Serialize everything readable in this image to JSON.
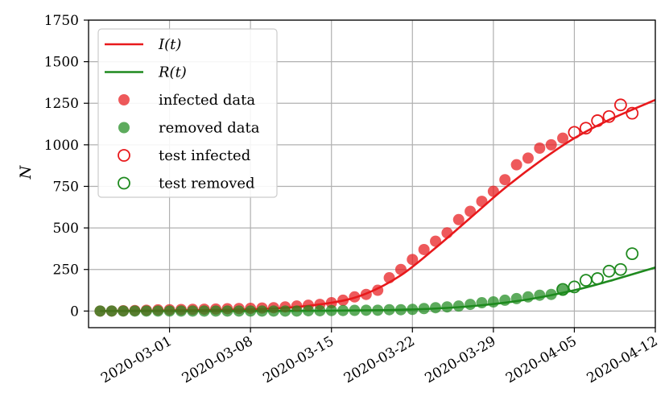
{
  "chart_data": {
    "type": "scatter",
    "title": "",
    "xlabel": "",
    "ylabel": "N",
    "grid": true,
    "legend_position": "top-left",
    "x_type": "date",
    "xlim": [
      "2020-02-23",
      "2020-04-12"
    ],
    "ylim": [
      -100,
      1750
    ],
    "xticks": [
      "2020-03-01",
      "2020-03-08",
      "2020-03-15",
      "2020-03-22",
      "2020-03-29",
      "2020-04-05",
      "2020-04-12"
    ],
    "yticks": [
      "0",
      "250",
      "500",
      "750",
      "1000",
      "1250",
      "1500",
      "1750"
    ],
    "colors": {
      "infected": "#e8191c",
      "removed": "#1f8a1f"
    },
    "legend": [
      {
        "label": "I(t)",
        "kind": "line",
        "color": "#e8191c"
      },
      {
        "label": "R(t)",
        "kind": "line",
        "color": "#1f8a1f"
      },
      {
        "label": "infected data",
        "kind": "filled-circle",
        "color": "#e8191c"
      },
      {
        "label": "removed data",
        "kind": "filled-circle",
        "color": "#1f8a1f"
      },
      {
        "label": "test infected",
        "kind": "open-circle",
        "color": "#e8191c"
      },
      {
        "label": "test removed",
        "kind": "open-circle",
        "color": "#1f8a1f"
      }
    ],
    "lines": [
      {
        "name": "I(t)",
        "color": "#e8191c",
        "x": [
          "2020-02-24",
          "2020-03-03",
          "2020-03-10",
          "2020-03-15",
          "2020-03-18",
          "2020-03-21",
          "2020-03-24",
          "2020-03-27",
          "2020-03-30",
          "2020-04-02",
          "2020-04-05",
          "2020-04-08",
          "2020-04-12"
        ],
        "y": [
          0,
          5,
          15,
          50,
          105,
          215,
          380,
          560,
          740,
          900,
          1040,
          1150,
          1270
        ]
      },
      {
        "name": "R(t)",
        "color": "#1f8a1f",
        "x": [
          "2020-02-24",
          "2020-03-08",
          "2020-03-15",
          "2020-03-20",
          "2020-03-24",
          "2020-03-28",
          "2020-04-01",
          "2020-04-05",
          "2020-04-08",
          "2020-04-12"
        ],
        "y": [
          0,
          0,
          2,
          6,
          15,
          35,
          70,
          125,
          180,
          262
        ]
      }
    ],
    "series": [
      {
        "name": "infected data",
        "marker": "filled",
        "color": "#e8191c",
        "x": [
          "2020-02-24",
          "2020-02-25",
          "2020-02-26",
          "2020-02-27",
          "2020-02-28",
          "2020-02-29",
          "2020-03-01",
          "2020-03-02",
          "2020-03-03",
          "2020-03-04",
          "2020-03-05",
          "2020-03-06",
          "2020-03-07",
          "2020-03-08",
          "2020-03-09",
          "2020-03-10",
          "2020-03-11",
          "2020-03-12",
          "2020-03-13",
          "2020-03-14",
          "2020-03-15",
          "2020-03-16",
          "2020-03-17",
          "2020-03-18",
          "2020-03-19",
          "2020-03-20",
          "2020-03-21",
          "2020-03-22",
          "2020-03-23",
          "2020-03-24",
          "2020-03-25",
          "2020-03-26",
          "2020-03-27",
          "2020-03-28",
          "2020-03-29",
          "2020-03-30",
          "2020-03-31",
          "2020-04-01",
          "2020-04-02",
          "2020-04-03",
          "2020-04-04"
        ],
        "y": [
          0,
          0,
          2,
          3,
          5,
          7,
          8,
          9,
          10,
          11,
          12,
          14,
          15,
          16,
          18,
          20,
          25,
          30,
          35,
          40,
          50,
          65,
          85,
          100,
          125,
          200,
          250,
          310,
          370,
          420,
          470,
          550,
          600,
          660,
          720,
          790,
          880,
          920,
          980,
          1000,
          1040
        ]
      },
      {
        "name": "removed data",
        "marker": "filled",
        "color": "#1f8a1f",
        "x": [
          "2020-02-24",
          "2020-02-25",
          "2020-02-26",
          "2020-02-27",
          "2020-02-28",
          "2020-02-29",
          "2020-03-01",
          "2020-03-02",
          "2020-03-03",
          "2020-03-04",
          "2020-03-05",
          "2020-03-06",
          "2020-03-07",
          "2020-03-08",
          "2020-03-09",
          "2020-03-10",
          "2020-03-11",
          "2020-03-12",
          "2020-03-13",
          "2020-03-14",
          "2020-03-15",
          "2020-03-16",
          "2020-03-17",
          "2020-03-18",
          "2020-03-19",
          "2020-03-20",
          "2020-03-21",
          "2020-03-22",
          "2020-03-23",
          "2020-03-24",
          "2020-03-25",
          "2020-03-26",
          "2020-03-27",
          "2020-03-28",
          "2020-03-29",
          "2020-03-30",
          "2020-03-31",
          "2020-04-01",
          "2020-04-02",
          "2020-04-03",
          "2020-04-04"
        ],
        "y": [
          0,
          0,
          0,
          0,
          0,
          0,
          0,
          0,
          0,
          0,
          0,
          0,
          0,
          0,
          0,
          0,
          0,
          0,
          2,
          2,
          3,
          3,
          4,
          5,
          5,
          8,
          8,
          10,
          15,
          20,
          25,
          30,
          40,
          50,
          55,
          65,
          75,
          85,
          95,
          100,
          125
        ]
      },
      {
        "name": "test infected",
        "marker": "open",
        "color": "#e8191c",
        "x": [
          "2020-04-05",
          "2020-04-06",
          "2020-04-07",
          "2020-04-08",
          "2020-04-09",
          "2020-04-10"
        ],
        "y": [
          1075,
          1100,
          1145,
          1170,
          1240,
          1190
        ]
      },
      {
        "name": "test removed",
        "marker": "open",
        "color": "#1f8a1f",
        "x": [
          "2020-04-04",
          "2020-04-05",
          "2020-04-06",
          "2020-04-07",
          "2020-04-08",
          "2020-04-09",
          "2020-04-10"
        ],
        "y": [
          130,
          145,
          185,
          195,
          240,
          250,
          345
        ]
      }
    ]
  }
}
